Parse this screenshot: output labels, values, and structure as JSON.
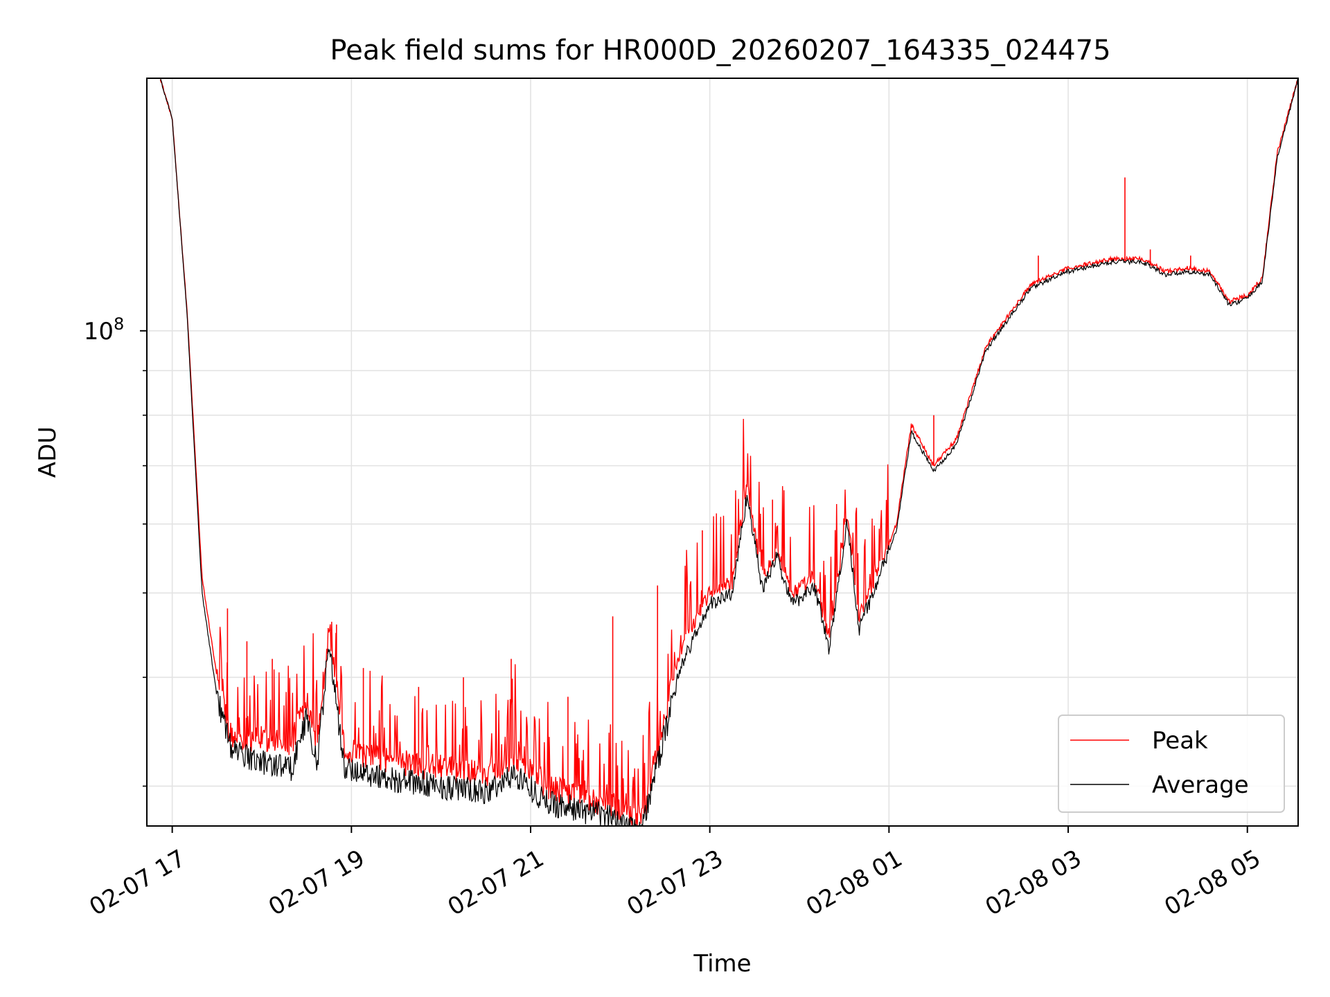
{
  "chart_data": {
    "type": "line",
    "title": "Peak field sums for HR000D_20260207_164335_024475",
    "xlabel": "Time",
    "ylabel": "ADU",
    "yscale": "log",
    "grid": true,
    "legend_position": "bottom-right",
    "xlim": [
      "2026-02-07 16:43",
      "2026-02-08 05:34"
    ],
    "ylim": [
      27000000,
      195000000
    ],
    "x_ticks": [
      {
        "t": "2026-02-07 17:00",
        "label": "02-07 17"
      },
      {
        "t": "2026-02-07 19:00",
        "label": "02-07 19"
      },
      {
        "t": "2026-02-07 21:00",
        "label": "02-07 21"
      },
      {
        "t": "2026-02-07 23:00",
        "label": "02-07 23"
      },
      {
        "t": "2026-02-08 01:00",
        "label": "02-08 01"
      },
      {
        "t": "2026-02-08 03:00",
        "label": "02-08 03"
      },
      {
        "t": "2026-02-08 05:00",
        "label": "02-08 05"
      }
    ],
    "y_major_ticks": [
      {
        "value": 100000000,
        "base": "10",
        "exponent": "8"
      }
    ],
    "y_minor_ticks": [
      30000000,
      40000000,
      50000000,
      60000000,
      70000000,
      80000000,
      90000000,
      200000000
    ],
    "series": [
      {
        "name": "Peak",
        "color": "#ff0000",
        "baseline": [
          [
            "2026-02-07 16:52",
            195000000
          ],
          [
            "2026-02-07 17:00",
            175000000
          ],
          [
            "2026-02-07 17:10",
            105000000
          ],
          [
            "2026-02-07 17:20",
            52000000
          ],
          [
            "2026-02-07 17:30",
            40000000
          ],
          [
            "2026-02-07 17:40",
            34000000
          ],
          [
            "2026-02-07 18:00",
            34000000
          ],
          [
            "2026-02-07 18:20",
            33500000
          ],
          [
            "2026-02-07 18:30",
            38000000
          ],
          [
            "2026-02-07 18:37",
            33500000
          ],
          [
            "2026-02-07 18:45",
            46000000
          ],
          [
            "2026-02-07 18:55",
            33000000
          ],
          [
            "2026-02-07 19:30",
            32000000
          ],
          [
            "2026-02-07 20:00",
            31500000
          ],
          [
            "2026-02-07 20:30",
            31000000
          ],
          [
            "2026-02-07 20:50",
            32500000
          ],
          [
            "2026-02-07 21:10",
            30000000
          ],
          [
            "2026-02-07 21:40",
            29000000
          ],
          [
            "2026-02-07 22:05",
            28000000
          ],
          [
            "2026-02-07 22:15",
            27500000
          ],
          [
            "2026-02-07 22:30",
            36000000
          ],
          [
            "2026-02-07 22:40",
            43000000
          ],
          [
            "2026-02-07 23:00",
            50000000
          ],
          [
            "2026-02-07 23:15",
            51500000
          ],
          [
            "2026-02-07 23:25",
            67000000
          ],
          [
            "2026-02-07 23:35",
            52000000
          ],
          [
            "2026-02-07 23:45",
            56000000
          ],
          [
            "2026-02-07 23:55",
            50000000
          ],
          [
            "2026-02-08 00:10",
            52000000
          ],
          [
            "2026-02-08 00:20",
            44000000
          ],
          [
            "2026-02-08 00:32",
            62000000
          ],
          [
            "2026-02-08 00:40",
            47000000
          ],
          [
            "2026-02-08 00:55",
            54000000
          ],
          [
            "2026-02-08 01:05",
            60000000
          ],
          [
            "2026-02-08 01:15",
            78000000
          ],
          [
            "2026-02-08 01:30",
            70000000
          ],
          [
            "2026-02-08 01:45",
            75000000
          ],
          [
            "2026-02-08 02:05",
            96000000
          ],
          [
            "2026-02-08 02:35",
            113000000
          ],
          [
            "2026-02-08 03:00",
            118000000
          ],
          [
            "2026-02-08 03:30",
            121000000
          ],
          [
            "2026-02-08 03:50",
            121000000
          ],
          [
            "2026-02-08 04:05",
            117000000
          ],
          [
            "2026-02-08 04:20",
            118000000
          ],
          [
            "2026-02-08 04:35",
            117000000
          ],
          [
            "2026-02-08 04:48",
            108000000
          ],
          [
            "2026-02-08 05:00",
            110000000
          ],
          [
            "2026-02-08 05:10",
            115000000
          ],
          [
            "2026-02-08 05:20",
            160000000
          ],
          [
            "2026-02-08 05:34",
            195000000
          ]
        ],
        "spikes": [
          [
            "2026-02-07 17:37",
            48000000
          ],
          [
            "2026-02-07 17:50",
            44000000
          ],
          [
            "2026-02-07 18:07",
            42000000
          ],
          [
            "2026-02-07 18:50",
            46000000
          ],
          [
            "2026-02-07 19:08",
            41000000
          ],
          [
            "2026-02-07 19:45",
            39000000
          ],
          [
            "2026-02-07 20:15",
            40000000
          ],
          [
            "2026-02-07 20:47",
            42000000
          ],
          [
            "2026-02-07 21:25",
            38000000
          ],
          [
            "2026-02-07 21:55",
            47000000
          ],
          [
            "2026-02-07 22:25",
            51000000
          ],
          [
            "2026-02-07 22:55",
            59000000
          ],
          [
            "2026-02-07 23:42",
            64000000
          ],
          [
            "2026-02-08 01:30",
            80000000
          ],
          [
            "2026-02-08 02:40",
            122000000
          ],
          [
            "2026-02-08 03:38",
            150000000
          ],
          [
            "2026-02-08 03:55",
            124000000
          ],
          [
            "2026-02-08 04:22",
            122000000
          ]
        ]
      },
      {
        "name": "Average",
        "color": "#000000",
        "baseline": [
          [
            "2026-02-07 16:52",
            195000000
          ],
          [
            "2026-02-07 17:00",
            175000000
          ],
          [
            "2026-02-07 17:10",
            104000000
          ],
          [
            "2026-02-07 17:20",
            50000000
          ],
          [
            "2026-02-07 17:30",
            38000000
          ],
          [
            "2026-02-07 17:40",
            33000000
          ],
          [
            "2026-02-07 18:00",
            32000000
          ],
          [
            "2026-02-07 18:20",
            31500000
          ],
          [
            "2026-02-07 18:30",
            36000000
          ],
          [
            "2026-02-07 18:37",
            31800000
          ],
          [
            "2026-02-07 18:45",
            44000000
          ],
          [
            "2026-02-07 18:55",
            31500000
          ],
          [
            "2026-02-07 19:30",
            30500000
          ],
          [
            "2026-02-07 20:00",
            30000000
          ],
          [
            "2026-02-07 20:30",
            29500000
          ],
          [
            "2026-02-07 20:50",
            31000000
          ],
          [
            "2026-02-07 21:10",
            28800000
          ],
          [
            "2026-02-07 21:40",
            28000000
          ],
          [
            "2026-02-07 22:05",
            27300000
          ],
          [
            "2026-02-07 22:15",
            27000000
          ],
          [
            "2026-02-07 22:30",
            34500000
          ],
          [
            "2026-02-07 22:40",
            41000000
          ],
          [
            "2026-02-07 23:00",
            48500000
          ],
          [
            "2026-02-07 23:15",
            50000000
          ],
          [
            "2026-02-07 23:25",
            65000000
          ],
          [
            "2026-02-07 23:35",
            50500000
          ],
          [
            "2026-02-07 23:45",
            55000000
          ],
          [
            "2026-02-07 23:55",
            48500000
          ],
          [
            "2026-02-08 00:10",
            51000000
          ],
          [
            "2026-02-08 00:20",
            43000000
          ],
          [
            "2026-02-08 00:32",
            60500000
          ],
          [
            "2026-02-08 00:40",
            45500000
          ],
          [
            "2026-02-08 00:55",
            53000000
          ],
          [
            "2026-02-08 01:05",
            59000000
          ],
          [
            "2026-02-08 01:15",
            76500000
          ],
          [
            "2026-02-08 01:30",
            69000000
          ],
          [
            "2026-02-08 01:45",
            74000000
          ],
          [
            "2026-02-08 02:05",
            95000000
          ],
          [
            "2026-02-08 02:35",
            112000000
          ],
          [
            "2026-02-08 03:00",
            117000000
          ],
          [
            "2026-02-08 03:30",
            120000000
          ],
          [
            "2026-02-08 03:50",
            120000000
          ],
          [
            "2026-02-08 04:05",
            116000000
          ],
          [
            "2026-02-08 04:20",
            117000000
          ],
          [
            "2026-02-08 04:35",
            116000000
          ],
          [
            "2026-02-08 04:48",
            107000000
          ],
          [
            "2026-02-08 05:00",
            109000000
          ],
          [
            "2026-02-08 05:10",
            114000000
          ],
          [
            "2026-02-08 05:20",
            158000000
          ],
          [
            "2026-02-08 05:34",
            195000000
          ]
        ]
      }
    ]
  }
}
